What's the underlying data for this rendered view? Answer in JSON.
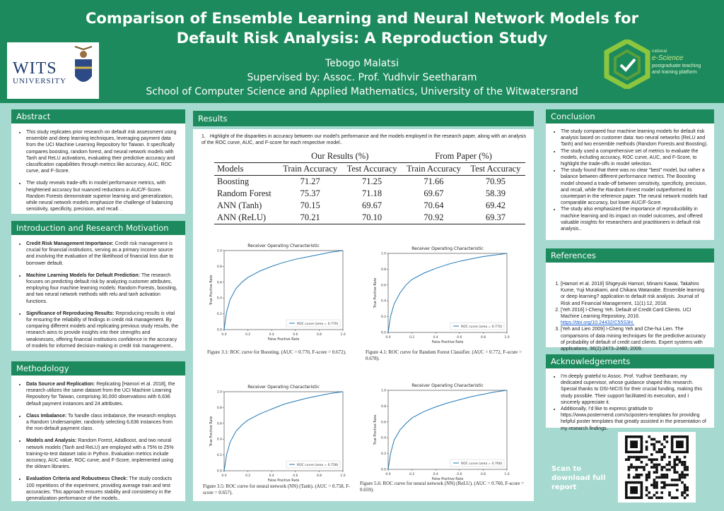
{
  "header": {
    "title": "Comparison of Ensemble Learning and Neural Network Models for Default Risk Analysis: A Reproduction Study",
    "author": "Tebogo Malatsi",
    "supervisor": "Supervised by: Assoc. Prof. Yudhvir Seetharam",
    "school": "School of Computer Science and Applied Mathematics, University of the Witwatersrand",
    "logo_left_line1": "WITS",
    "logo_left_line2": "UNIVERSITY",
    "logo_right_line1": "national",
    "logo_right_line2": "e-Science",
    "logo_right_line3": "postgraduate teaching",
    "logo_right_line4": "and training platform"
  },
  "abstract": {
    "title": "Abstract",
    "items": [
      "This study replicates prior research on default risk assessment using ensemble and deep learning techniques, leveraging payment data from the UCI Machine Learning Repository for Taiwan. It specifically compares boosting, random forest, and neural network models with Tanh and ReLU activations, evaluating their predictive accuracy and classification capabilities through metrics like accuracy, AUC, ROC curve, and F-Score.",
      "The study reveals trade-offs in model performance metrics, with heightened accuracy but nuanced reductions in AUC/F-Score. Random Forests demonstrate superior learning and generalization, while neural network models emphasize the challenge of balancing sensitivity, specificity, precision, and recall. ."
    ]
  },
  "intro": {
    "title": "Introduction and Research Motivation",
    "items": [
      {
        "b": "Credit Risk Management Importance:",
        "t": " Credit risk management is crucial for financial institutions, serving as a primary income source and involving the evaluation of the likelihood of financial loss due to borrower default."
      },
      {
        "b": "Machine Learning Models for Default Prediction:",
        "t": " The research focuses on predicting default risk by analyzing customer attributes, employing four machine learning models: Random Forests, boosting, and two neural network methods with relu and tanh activation functions."
      },
      {
        "b": "Significance of Reproducing Results:",
        "t": " Reproducing results is vital for ensuring the reliability of findings in credit risk management. By comparing different models and replicating previous study results, the research aims to provide insights into their strengths and weaknesses, offering financial institutions confidence in the accuracy of models for informed decision-making in credit risk management.."
      }
    ]
  },
  "methodology": {
    "title": "Methodology",
    "items": [
      {
        "b": "Data Source and Replication:",
        "t": " Replicating [Hamori et al. 2018], the research utilizes the same dataset from the UCI Machine Learning Repository for Taiwan, comprising 30,000 observations with 6,636 default payment instances and 24 attributes."
      },
      {
        "b": "Class Imbalance:",
        "t": " To handle class imbalance, the research employs a Random Undersampler, randomly selecting 6,636 instances from the non-default payment class."
      },
      {
        "b": "Models and Analysis:",
        "t": " Random Forest, AdaBoost, and two neural network models (Tanh and ReLU) are employed with a 75% to 25% training-to-test dataset ratio in Python. Evaluation metrics include accuracy, AUC value, ROC curve, and F-Score, implemented using the sklearn libraries."
      },
      {
        "b": "Evaluation Criteria and Robustness Check:",
        "t": " The study conducts 100 repetitions of the experiment, providing average train and test accuracies. This approach ensures stability and consistency in the generalization performance of the models.."
      }
    ]
  },
  "results": {
    "title": "Results",
    "intro": "Highlight of the disparities in accuracy between our model's performance and the models employed in the research paper, along with an analysis of the ROC curve, AUC, and F-score for each respective model..",
    "group_ours": "Our Results (%)",
    "group_paper": "From Paper (%)",
    "col_models": "Models",
    "col_train": "Train Accuracy",
    "col_test": "Test Accuracy",
    "rows": [
      {
        "model": "Boosting",
        "v": [
          "71.27",
          "71.25",
          "71.66",
          "70.95"
        ]
      },
      {
        "model": "Random Forest",
        "v": [
          "75.37",
          "71.18",
          "69.67",
          "58.39"
        ]
      },
      {
        "model": "ANN (Tanh)",
        "v": [
          "70.15",
          "69.67",
          "70.64",
          "69.42"
        ]
      },
      {
        "model": "ANN (ReLU)",
        "v": [
          "70.21",
          "70.10",
          "70.92",
          "69.37"
        ]
      }
    ],
    "captions": [
      "Figure 3.1: ROC curve for Boosting. (AUC = 0.770, F-score = 0.672).",
      "Figure 4.1: ROC curve for Random Forest Classifier. (AUC = 0.772, F-score = 0.678).",
      "Figure 3.5: ROC curve for neural network (NN) (Tanh). (AUC = 0.758, F-score = 0.657).",
      "Figure 5.6: ROC curve for neural network (NN) (ReLU). (AUC = 0.760, F-score = 0.659)."
    ]
  },
  "chart_data": [
    {
      "type": "line",
      "title": "Receiver Operating Characteristic",
      "xlabel": "False Positive Rate",
      "ylabel": "True Positive Rate",
      "xlim": [
        0,
        1
      ],
      "ylim": [
        0,
        1
      ],
      "x_ticks": [
        "0.0",
        "0.2",
        "0.4",
        "0.6",
        "0.8",
        "1.0"
      ],
      "y_ticks": [
        "0.0",
        "0.2",
        "0.4",
        "0.6",
        "0.8",
        "1.0"
      ],
      "legend": "lower-right",
      "series": [
        {
          "name": "ROC curve (area = 0.770)",
          "x": [
            0,
            0.02,
            0.05,
            0.1,
            0.15,
            0.2,
            0.3,
            0.4,
            0.5,
            0.6,
            0.7,
            0.8,
            0.9,
            1.0
          ],
          "y": [
            0,
            0.22,
            0.38,
            0.52,
            0.6,
            0.66,
            0.74,
            0.8,
            0.85,
            0.89,
            0.92,
            0.95,
            0.98,
            1.0
          ]
        }
      ]
    },
    {
      "type": "line",
      "title": "Receiver Operating Characteristic",
      "xlabel": "False Positive Rate",
      "ylabel": "True Positive Rate",
      "xlim": [
        0,
        1
      ],
      "ylim": [
        0,
        1
      ],
      "x_ticks": [
        "0.0",
        "0.2",
        "0.4",
        "0.6",
        "0.8",
        "1.0"
      ],
      "y_ticks": [
        "0.0",
        "0.2",
        "0.4",
        "0.6",
        "0.8",
        "1.0"
      ],
      "legend": "lower-right",
      "series": [
        {
          "name": "ROC curve (area = 0.772)",
          "x": [
            0,
            0.02,
            0.05,
            0.1,
            0.15,
            0.2,
            0.3,
            0.4,
            0.5,
            0.6,
            0.7,
            0.8,
            0.9,
            1.0
          ],
          "y": [
            0,
            0.2,
            0.36,
            0.5,
            0.6,
            0.67,
            0.75,
            0.81,
            0.86,
            0.9,
            0.93,
            0.96,
            0.98,
            1.0
          ]
        }
      ]
    },
    {
      "type": "line",
      "title": "Receiver Operating Characteristic",
      "xlabel": "False Positive Rate",
      "ylabel": "True Positive Rate",
      "xlim": [
        0,
        1
      ],
      "ylim": [
        0,
        1
      ],
      "x_ticks": [
        "0.0",
        "0.2",
        "0.4",
        "0.6",
        "0.8",
        "1.0"
      ],
      "y_ticks": [
        "0.0",
        "0.2",
        "0.4",
        "0.6",
        "0.8",
        "1.0"
      ],
      "legend": "lower-right",
      "series": [
        {
          "name": "ROC curve (area = 0.758)",
          "x": [
            0,
            0.02,
            0.05,
            0.1,
            0.15,
            0.2,
            0.3,
            0.4,
            0.5,
            0.6,
            0.7,
            0.8,
            0.9,
            1.0
          ],
          "y": [
            0,
            0.2,
            0.36,
            0.5,
            0.58,
            0.64,
            0.72,
            0.78,
            0.84,
            0.88,
            0.92,
            0.95,
            0.98,
            1.0
          ]
        }
      ]
    },
    {
      "type": "line",
      "title": "Receiver Operating Characteristic",
      "xlabel": "False Positive Rate",
      "ylabel": "True Positive Rate",
      "xlim": [
        0,
        1
      ],
      "ylim": [
        0,
        1
      ],
      "x_ticks": [
        "0.0",
        "0.2",
        "0.4",
        "0.6",
        "0.8",
        "1.0"
      ],
      "y_ticks": [
        "0.0",
        "0.2",
        "0.4",
        "0.6",
        "0.8",
        "1.0"
      ],
      "legend": "lower-right",
      "series": [
        {
          "name": "ROC curve (area = 0.760)",
          "x": [
            0,
            0.02,
            0.05,
            0.1,
            0.15,
            0.2,
            0.3,
            0.4,
            0.5,
            0.6,
            0.7,
            0.8,
            0.9,
            1.0
          ],
          "y": [
            0,
            0.2,
            0.37,
            0.5,
            0.58,
            0.65,
            0.73,
            0.79,
            0.84,
            0.88,
            0.92,
            0.95,
            0.98,
            1.0
          ]
        }
      ]
    }
  ],
  "conclusion": {
    "title": "Conclusion",
    "items": [
      "The study compared four machine learning models for default risk analysis based on customer data: two neural networks (ReLU and Tanh) and two ensemble methods (Random Forests and Boosting).",
      "The study used a comprehensive set of metrics to evaluate the models, including accuracy, ROC curve, AUC, and F-Score, to highlight the trade-offs in model selection.",
      "The study found that there was no clear \"best\" model, but rather a balance between different performance metrics. The Boosting model showed a trade-off between sensitivity, specificity, precision, and recall, while the Random Forest model outperformed its counterpart in the reference paper. The neural network models had comparable accuracy, but lower AUC/F-Score.",
      "The study also emphasized the importance of reproducibility in machine learning and its impact on model outcomes, and offered valuable insights for researchers and practitioners in default risk analysis.."
    ]
  },
  "references": {
    "title": "References",
    "items": [
      {
        "t": "[Hamori et al. 2018] Shigeyuki Hamori, Minami Kawai, Takahiro Kume, Yuji Murakami, and Chikara Watanabe. Ensemble learning or deep learning? application to default risk analysis. Journal of Risk and Financial Management, 11(1):12, 2018.",
        "link": ""
      },
      {
        "t": "[Yeh 2016] I-Cheng Yeh. Default of Credit Card Clients. UCI Machine Learning Repository, 2016. ",
        "link": "https://doi.org/10.24432/C55S3H."
      },
      {
        "t": "[Yeh and Lien 2009] I-Cheng Yeh and Che-hui Lien. The comparisons of data mining techniques for the predictive accuracy of probability of default of credit card clients. Expert systems with applications, 36(2):2473–2480, 2009.",
        "link": ""
      }
    ]
  },
  "acknowledgements": {
    "title": "Acknowledgements",
    "items": [
      "I'm deeply grateful to Assoc. Prof. Yudhvir Seetharam, my dedicated supervisor, whose guidance shaped this research. Special thanks to DSI-NICIS for their crucial funding, making this study possible. Their support facilitated its execution, and I sincerely appreciate it.",
      "Additionally, I'd like to express gratitude to https://www.postermend.com/sciposters-templates for providing helpful poster templates that greatly assisted in the presentation of my research findings."
    ]
  },
  "scan": "Scan to download full report",
  "colors": {
    "green": "#1c8a5c",
    "teal_bg": "#a6dad0",
    "roc_line": "#1f77b4"
  }
}
